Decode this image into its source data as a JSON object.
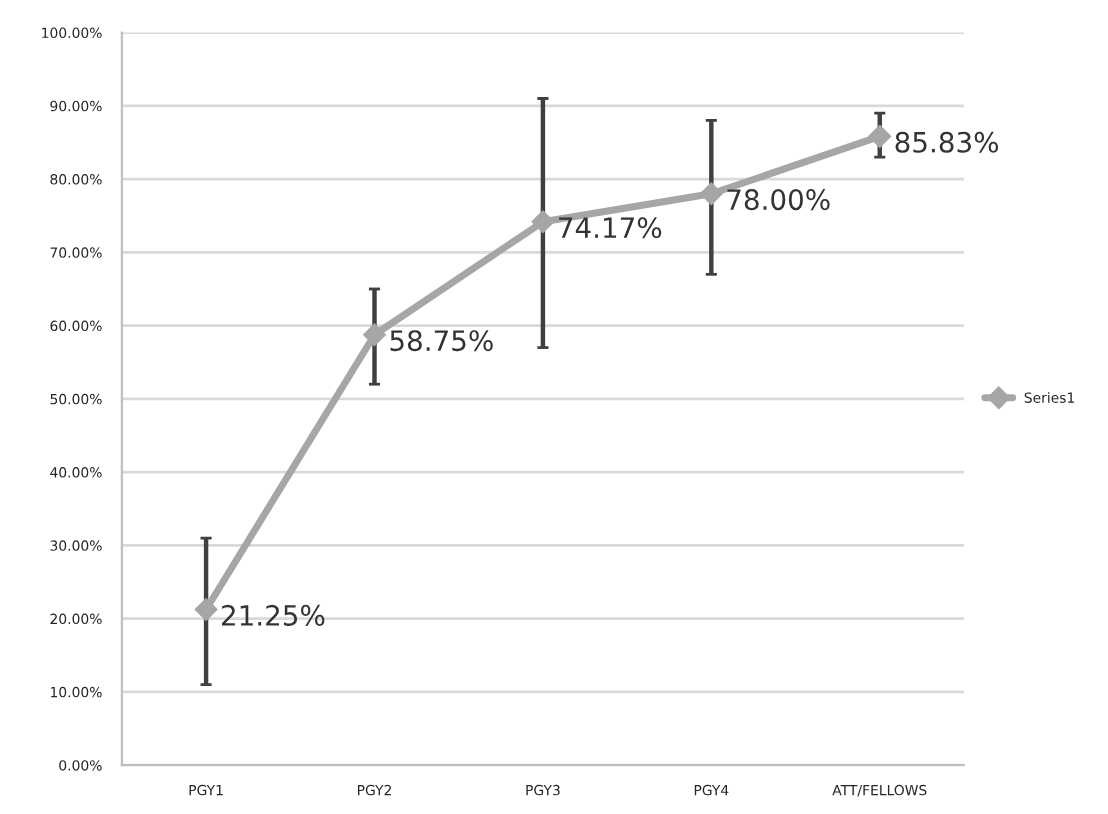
{
  "chart_data": {
    "type": "line",
    "categories": [
      "PGY1",
      "PGY2",
      "PGY3",
      "PGY4",
      "ATT/FELLOWS"
    ],
    "series": [
      {
        "name": "Series1",
        "color": "#a6a6a6",
        "values": [
          21.25,
          58.75,
          74.17,
          78.0,
          85.83
        ],
        "errors": [
          [
            11,
            31
          ],
          [
            52,
            65
          ],
          [
            57,
            91
          ],
          [
            67,
            88
          ],
          [
            83,
            89
          ]
        ],
        "value_labels": [
          "21.25%",
          "58.75%",
          "74.17%",
          "78.00%",
          "85.83%"
        ]
      }
    ],
    "ylim": [
      0,
      100
    ],
    "yticks": [
      {
        "value": 0,
        "label": "0.00%"
      },
      {
        "value": 10,
        "label": "10.00%"
      },
      {
        "value": 20,
        "label": "20.00%"
      },
      {
        "value": 30,
        "label": "30.00%"
      },
      {
        "value": 40,
        "label": "40.00%"
      },
      {
        "value": 50,
        "label": "50.00%"
      },
      {
        "value": 60,
        "label": "60.00%"
      },
      {
        "value": 70,
        "label": "70.00%"
      },
      {
        "value": 80,
        "label": "80.00%"
      },
      {
        "value": 90,
        "label": "90.00%"
      },
      {
        "value": 100,
        "label": "100.00%"
      }
    ],
    "grid": "y",
    "legend": "right",
    "marker": "diamond",
    "line_style": "solid"
  }
}
